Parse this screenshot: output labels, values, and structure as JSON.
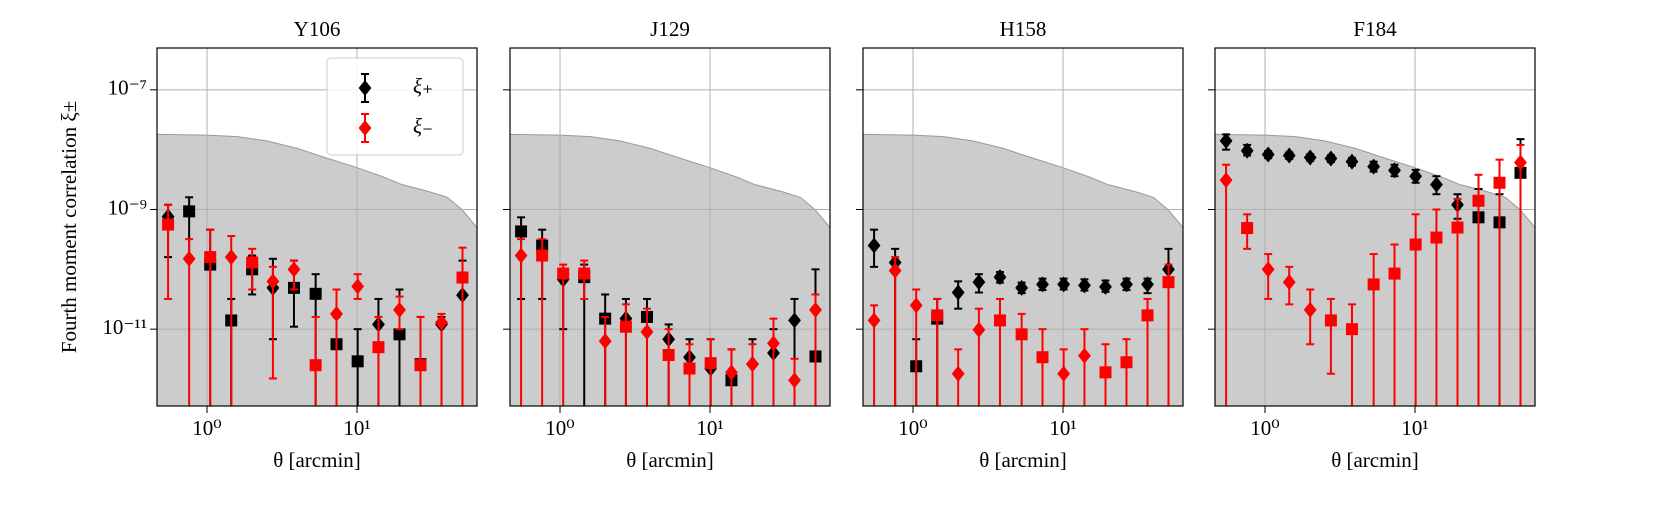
{
  "chart_data": [
    {
      "type": "scatter",
      "title": "Y106",
      "xlabel": "θ [arcmin]",
      "ylabel": "Fourth moment correlation ξ±",
      "xscale": "log",
      "yscale": "log",
      "grid": true,
      "legend": "upper right",
      "xlim": [
        0.464,
        63.1
      ],
      "ylim": [
        5.2e-13,
        5e-07
      ],
      "xticks": [
        {
          "value": 1,
          "label": "10⁰"
        },
        {
          "value": 10,
          "label": "10¹"
        }
      ],
      "yticks": [
        {
          "value": 1e-07,
          "label": "10⁻⁷"
        },
        {
          "value": 1e-09,
          "label": "10⁻⁹"
        },
        {
          "value": 1e-11,
          "label": "10⁻¹¹"
        }
      ],
      "shade": {
        "color": "#cccccc",
        "x": [
          0.464,
          1,
          1.6,
          2.5,
          4,
          6,
          10,
          15,
          20,
          30,
          40,
          50,
          63.1
        ],
        "values": [
          1.8e-08,
          1.75e-08,
          1.65e-08,
          1.4e-08,
          1.05e-08,
          7.5e-09,
          5e-09,
          3.5e-09,
          2.6e-09,
          2e-09,
          1.6e-09,
          1e-09,
          5e-10
        ]
      },
      "x": [
        0.55,
        0.76,
        1.05,
        1.45,
        2.0,
        2.75,
        3.8,
        5.3,
        7.3,
        10.1,
        13.9,
        19.2,
        26.5,
        36.6,
        50.5
      ],
      "series": [
        {
          "name": "ξ₊",
          "color": "#000000",
          "values": [
            7.6e-10,
            9.3e-10,
            1.2e-10,
            1.4e-11,
            1e-10,
            4.9e-11,
            4.9e-11,
            3.9e-11,
            5.6e-12,
            2.9e-12,
            1.2e-11,
            8.2e-12,
            2.6e-12,
            1.2e-11,
            3.7e-11
          ],
          "markers": [
            "D",
            "s",
            "s",
            "s",
            "s",
            "D",
            "s",
            "s",
            "s",
            "s",
            "D",
            "s",
            "s",
            "D",
            "D"
          ],
          "err_hi": [
            1.2e-09,
            1.6e-09,
            4.6e-10,
            3.2e-11,
            1.7e-10,
            1.5e-10,
            1.4e-10,
            8.3e-11,
            1.6e-11,
            1e-11,
            3.2e-11,
            4.6e-11,
            1.6e-11,
            1.6e-11,
            1.4e-10
          ],
          "err_lo": [
            1.6e-10,
            1.5e-10,
            1e-13,
            1e-13,
            3.8e-11,
            6.8e-12,
            1.1e-11,
            1e-13,
            1e-13,
            1e-13,
            1e-13,
            1e-13,
            1e-13,
            1e-13,
            1e-13
          ]
        },
        {
          "name": "ξ₋",
          "color": "#ff0000",
          "values": [
            5.6e-10,
            1.5e-10,
            1.6e-10,
            1.6e-10,
            1.3e-10,
            6.3e-11,
            1e-10,
            2.5e-12,
            1.8e-11,
            5.2e-11,
            5e-12,
            2.1e-11,
            2.5e-12,
            1.3e-11,
            7.3e-11
          ],
          "markers": [
            "s",
            "D",
            "s",
            "D",
            "s",
            "D",
            "D",
            "s",
            "D",
            "D",
            "s",
            "D",
            "s",
            "D",
            "s"
          ],
          "err_hi": [
            1.2e-09,
            3.2e-10,
            4.6e-10,
            3.6e-10,
            2.2e-10,
            1.1e-10,
            1.4e-10,
            1.6e-11,
            4.6e-11,
            8.3e-11,
            1.6e-11,
            3.5e-11,
            1.6e-11,
            1.8e-11,
            2.3e-10
          ],
          "err_lo": [
            3.2e-11,
            1e-13,
            1e-13,
            1e-13,
            4.6e-11,
            1.5e-12,
            4.6e-11,
            1e-13,
            1e-13,
            3.2e-11,
            1e-13,
            1e-11,
            1e-13,
            1e-13,
            1e-13
          ]
        }
      ]
    },
    {
      "type": "scatter",
      "title": "J129",
      "xlabel": "θ [arcmin]",
      "xscale": "log",
      "yscale": "log",
      "grid": true,
      "xlim": [
        0.464,
        63.1
      ],
      "ylim": [
        5.2e-13,
        5e-07
      ],
      "xticks": [
        {
          "value": 1,
          "label": "10⁰"
        },
        {
          "value": 10,
          "label": "10¹"
        }
      ],
      "yticks": [
        1e-07,
        1e-09,
        1e-11
      ],
      "shade": {
        "color": "#cccccc",
        "x": [
          0.464,
          1,
          1.6,
          2.5,
          4,
          6,
          10,
          15,
          20,
          30,
          40,
          50,
          63.1
        ],
        "values": [
          1.8e-08,
          1.75e-08,
          1.65e-08,
          1.4e-08,
          1.05e-08,
          7.5e-09,
          5e-09,
          3.5e-09,
          2.6e-09,
          2e-09,
          1.6e-09,
          1e-09,
          5e-10
        ]
      },
      "x": [
        0.55,
        0.76,
        1.05,
        1.45,
        2.0,
        2.75,
        3.8,
        5.3,
        7.3,
        10.1,
        13.9,
        19.2,
        26.5,
        36.6,
        50.5
      ],
      "series": [
        {
          "color": "#000000",
          "values": [
            4.3e-10,
            2.5e-10,
            6.8e-11,
            7.4e-11,
            1.5e-11,
            1.5e-11,
            1.6e-11,
            6.8e-12,
            3.4e-12,
            2.2e-12,
            1.4e-12,
            2.6e-12,
            4e-12,
            1.4e-11,
            3.5e-12
          ],
          "markers": [
            "s",
            "s",
            "D",
            "s",
            "s",
            "D",
            "s",
            "D",
            "D",
            "D",
            "s",
            "D",
            "D",
            "D",
            "s"
          ],
          "err_hi": [
            7.4e-10,
            4.6e-10,
            1e-10,
            1.2e-10,
            3.8e-11,
            3.2e-11,
            3.2e-11,
            1.2e-11,
            6.8e-12,
            6.8e-12,
            4.6e-12,
            6.8e-12,
            1e-11,
            3.2e-11,
            1e-10
          ],
          "err_lo": [
            3.2e-11,
            3.2e-11,
            1e-11,
            1e-13,
            1e-13,
            1e-13,
            1e-13,
            1e-13,
            1e-13,
            1e-13,
            1e-13,
            1e-13,
            1e-13,
            1e-13,
            1e-13
          ]
        },
        {
          "color": "#ff0000",
          "values": [
            1.7e-10,
            1.7e-10,
            8.5e-11,
            8.5e-11,
            6.3e-12,
            1.1e-11,
            9e-12,
            3.7e-12,
            2.2e-12,
            2.7e-12,
            1.9e-12,
            2.6e-12,
            5.8e-12,
            1.4e-12,
            2.1e-11
          ],
          "markers": [
            "D",
            "s",
            "s",
            "s",
            "D",
            "s",
            "D",
            "s",
            "s",
            "s",
            "D",
            "D",
            "D",
            "D",
            "D"
          ],
          "err_hi": [
            3.2e-10,
            3.2e-10,
            1.2e-10,
            1.4e-10,
            1.6e-11,
            2.6e-11,
            2.2e-11,
            1e-11,
            5.6e-12,
            6.8e-12,
            4.6e-12,
            5.6e-12,
            1.5e-11,
            3.2e-12,
            3.8e-11
          ],
          "err_lo": [
            1e-13,
            1e-13,
            1e-13,
            3.2e-11,
            1e-13,
            1e-13,
            1e-13,
            1e-13,
            1e-13,
            1e-13,
            1e-13,
            1e-13,
            1e-13,
            1e-13,
            1e-13
          ]
        }
      ]
    },
    {
      "type": "scatter",
      "title": "H158",
      "xlabel": "θ [arcmin]",
      "xscale": "log",
      "yscale": "log",
      "grid": true,
      "xlim": [
        0.464,
        63.1
      ],
      "ylim": [
        5.2e-13,
        5e-07
      ],
      "xticks": [
        {
          "value": 1,
          "label": "10⁰"
        },
        {
          "value": 10,
          "label": "10¹"
        }
      ],
      "yticks": [
        1e-07,
        1e-09,
        1e-11
      ],
      "shade": {
        "color": "#cccccc",
        "x": [
          0.464,
          1,
          1.6,
          2.5,
          4,
          6,
          10,
          15,
          20,
          30,
          40,
          50,
          63.1
        ],
        "values": [
          1.8e-08,
          1.75e-08,
          1.65e-08,
          1.4e-08,
          1.05e-08,
          7.5e-09,
          5e-09,
          3.5e-09,
          2.6e-09,
          2e-09,
          1.6e-09,
          1e-09,
          5e-10
        ]
      },
      "x": [
        0.55,
        0.76,
        1.05,
        1.45,
        2.0,
        2.75,
        3.8,
        5.3,
        7.3,
        10.1,
        13.9,
        19.2,
        26.5,
        36.6,
        50.5
      ],
      "series": [
        {
          "color": "#000000",
          "values": [
            2.5e-10,
            1.3e-10,
            2.4e-12,
            1.5e-11,
            4.1e-11,
            6.1e-11,
            7.4e-11,
            4.9e-11,
            5.6e-11,
            5.6e-11,
            5.4e-11,
            5.1e-11,
            5.6e-11,
            5.6e-11,
            1e-10
          ],
          "markers": [
            "D",
            "D",
            "s",
            "s",
            "D",
            "D",
            "D",
            "D",
            "D",
            "D",
            "D",
            "D",
            "D",
            "D",
            "D"
          ],
          "err_hi": [
            4.6e-10,
            2.2e-10,
            6.8e-12,
            3.2e-11,
            6.3e-11,
            8.3e-11,
            9e-11,
            6e-11,
            7e-11,
            7e-11,
            6.8e-11,
            6.5e-11,
            7e-11,
            7e-11,
            2.2e-10
          ],
          "err_lo": [
            1.1e-10,
            1e-13,
            1e-13,
            1e-13,
            2.2e-11,
            4.1e-11,
            6e-11,
            4e-11,
            4.5e-11,
            4.6e-11,
            4.4e-11,
            4.2e-11,
            4.5e-11,
            4e-11,
            1e-13
          ]
        },
        {
          "color": "#ff0000",
          "values": [
            1.4e-11,
            9.5e-11,
            2.5e-11,
            1.7e-11,
            1.8e-12,
            9.8e-12,
            1.4e-11,
            8.2e-12,
            3.4e-12,
            1.8e-12,
            3.6e-12,
            1.9e-12,
            2.8e-12,
            1.7e-11,
            6.1e-11
          ],
          "markers": [
            "D",
            "D",
            "D",
            "s",
            "D",
            "D",
            "s",
            "s",
            "s",
            "D",
            "D",
            "s",
            "s",
            "s",
            "s"
          ],
          "err_hi": [
            2.5e-11,
            1.6e-10,
            4.6e-11,
            3.2e-11,
            4.6e-12,
            2.2e-11,
            3.2e-11,
            1.8e-11,
            1e-11,
            4.6e-12,
            1e-11,
            5.6e-12,
            6.8e-12,
            3.2e-11,
            1.2e-10
          ],
          "err_lo": [
            1e-13,
            1e-13,
            1e-13,
            1e-13,
            1e-13,
            1e-13,
            1e-13,
            1e-13,
            1e-13,
            1e-13,
            1e-13,
            1e-13,
            1e-13,
            1e-13,
            1e-13
          ]
        }
      ]
    },
    {
      "type": "scatter",
      "title": "F184",
      "xlabel": "θ [arcmin]",
      "xscale": "log",
      "yscale": "log",
      "grid": true,
      "xlim": [
        0.464,
        63.1
      ],
      "ylim": [
        5.2e-13,
        5e-07
      ],
      "xticks": [
        {
          "value": 1,
          "label": "10⁰"
        },
        {
          "value": 10,
          "label": "10¹"
        }
      ],
      "yticks": [
        1e-07,
        1e-09,
        1e-11
      ],
      "shade": {
        "color": "#cccccc",
        "x": [
          0.464,
          1,
          1.6,
          2.5,
          4,
          6,
          10,
          15,
          20,
          30,
          40,
          50,
          63.1
        ],
        "values": [
          1.8e-08,
          1.75e-08,
          1.65e-08,
          1.4e-08,
          1.05e-08,
          7.5e-09,
          5e-09,
          3.5e-09,
          2.6e-09,
          2e-09,
          1.6e-09,
          1e-09,
          5e-10
        ]
      },
      "x": [
        0.55,
        0.76,
        1.05,
        1.45,
        2.0,
        2.75,
        3.8,
        5.3,
        7.3,
        10.1,
        13.9,
        19.2,
        26.5,
        36.6,
        50.5
      ],
      "series": [
        {
          "color": "#000000",
          "values": [
            1.4e-08,
            9.6e-09,
            8.3e-09,
            8e-09,
            7.4e-09,
            7.1e-09,
            6.3e-09,
            5.2e-09,
            4.5e-09,
            3.6e-09,
            2.6e-09,
            1.2e-09,
            7.4e-10,
            6.1e-10,
            4.1e-09
          ],
          "markers": [
            "D",
            "D",
            "D",
            "D",
            "D",
            "D",
            "D",
            "D",
            "D",
            "D",
            "D",
            "D",
            "s",
            "s",
            "s"
          ],
          "err_hi": [
            1.8e-08,
            1.2e-08,
            9.5e-09,
            9e-09,
            8.4e-09,
            8.1e-09,
            7.3e-09,
            6.3e-09,
            5.6e-09,
            4.6e-09,
            3.6e-09,
            1.8e-09,
            2.2e-09,
            1.8e-09,
            1.5e-08
          ],
          "err_lo": [
            1e-08,
            8e-09,
            7.2e-09,
            7e-09,
            6.5e-09,
            6.2e-09,
            5.4e-09,
            4.3e-09,
            3.6e-09,
            2.8e-09,
            1.8e-09,
            7e-10,
            1e-13,
            1e-13,
            1e-13
          ]
        },
        {
          "color": "#ff0000",
          "values": [
            3.1e-09,
            4.9e-10,
            1e-10,
            6.1e-11,
            2.1e-11,
            1.4e-11,
            1e-11,
            5.6e-11,
            8.5e-11,
            2.6e-10,
            3.4e-10,
            5e-10,
            1.4e-09,
            2.8e-09,
            6.1e-09
          ],
          "markers": [
            "D",
            "s",
            "D",
            "D",
            "D",
            "s",
            "s",
            "s",
            "s",
            "s",
            "s",
            "s",
            "s",
            "s",
            "D"
          ],
          "err_hi": [
            5.6e-09,
            8.3e-10,
            1.8e-10,
            1.1e-10,
            4.6e-11,
            3.2e-11,
            2.6e-11,
            1.8e-10,
            2.6e-10,
            8.3e-10,
            1e-09,
            1.5e-09,
            3.8e-09,
            6.8e-09,
            1.2e-08
          ],
          "err_lo": [
            1e-13,
            2.2e-10,
            3.2e-11,
            2.6e-11,
            5.6e-12,
            1.8e-12,
            1e-13,
            1e-13,
            1e-13,
            1e-13,
            1e-13,
            1e-13,
            1e-13,
            1e-13,
            1e-13
          ]
        }
      ]
    }
  ]
}
